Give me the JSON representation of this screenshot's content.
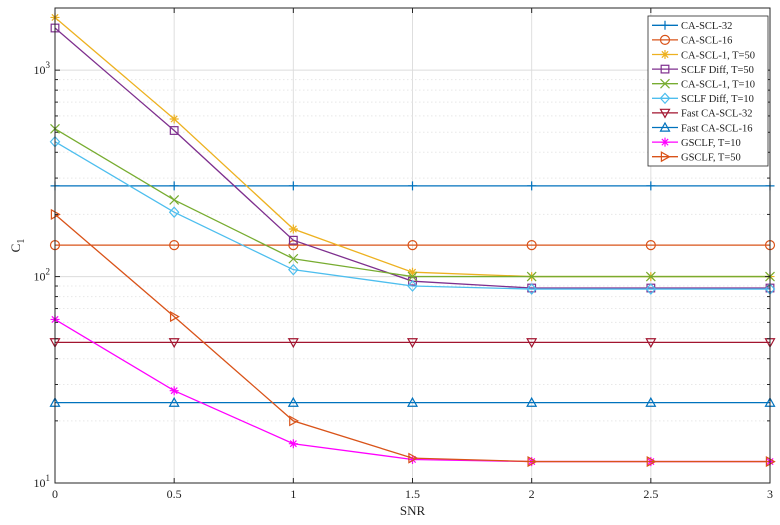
{
  "chart_data": {
    "type": "line",
    "xlabel": "SNR",
    "ylabel": "C",
    "ylabel_subscript": "1",
    "xlim": [
      0,
      3
    ],
    "ylim": [
      10,
      2000
    ],
    "yscale": "log",
    "grid": true,
    "legend_position": "top-right",
    "x": [
      0,
      0.5,
      1,
      1.5,
      2,
      2.5,
      3
    ],
    "xticks": [
      "0",
      "0.5",
      "1",
      "1.5",
      "2",
      "2.5",
      "3"
    ],
    "yticks": [
      {
        "value": 10,
        "base": "10",
        "exp": "1"
      },
      {
        "value": 100,
        "base": "10",
        "exp": "2"
      },
      {
        "value": 1000,
        "base": "10",
        "exp": "3"
      }
    ],
    "series": [
      {
        "name": "CA-SCL-32",
        "color": "#0072BD",
        "marker": "plus",
        "values": [
          275,
          275,
          275,
          275,
          275,
          275,
          275
        ]
      },
      {
        "name": "CA-SCL-16",
        "color": "#D95319",
        "marker": "circle",
        "values": [
          142,
          142,
          142,
          142,
          142,
          142,
          142
        ]
      },
      {
        "name": "CA-SCL-1, T=50",
        "color": "#EDB120",
        "marker": "star",
        "values": [
          1800,
          580,
          170,
          105,
          100,
          100,
          100
        ]
      },
      {
        "name": "SCLF Diff, T=50",
        "color": "#7E2F8E",
        "marker": "square",
        "values": [
          1600,
          510,
          150,
          95,
          88,
          88,
          88
        ]
      },
      {
        "name": "CA-SCL-1, T=10",
        "color": "#77AC30",
        "marker": "x",
        "values": [
          520,
          235,
          122,
          100,
          100,
          100,
          100
        ]
      },
      {
        "name": "SCLF Diff, T=10",
        "color": "#4DBEEE",
        "marker": "diamond",
        "values": [
          450,
          205,
          108,
          90,
          87,
          87,
          87
        ]
      },
      {
        "name": "Fast CA-SCL-32",
        "color": "#A2142F",
        "marker": "triangle-down",
        "values": [
          48,
          48,
          48,
          48,
          48,
          48,
          48
        ]
      },
      {
        "name": "Fast CA-SCL-16",
        "color": "#0072BD",
        "marker": "triangle-up",
        "values": [
          24.5,
          24.5,
          24.5,
          24.5,
          24.5,
          24.5,
          24.5
        ]
      },
      {
        "name": "GSCLF, T=10",
        "color": "#FF00FF",
        "marker": "star",
        "values": [
          62,
          28,
          15.5,
          13,
          12.7,
          12.7,
          12.7
        ]
      },
      {
        "name": "GSCLF, T=50",
        "color": "#D95319",
        "marker": "triangle-right",
        "values": [
          200,
          64,
          20,
          13.2,
          12.7,
          12.7,
          12.7
        ]
      }
    ]
  }
}
